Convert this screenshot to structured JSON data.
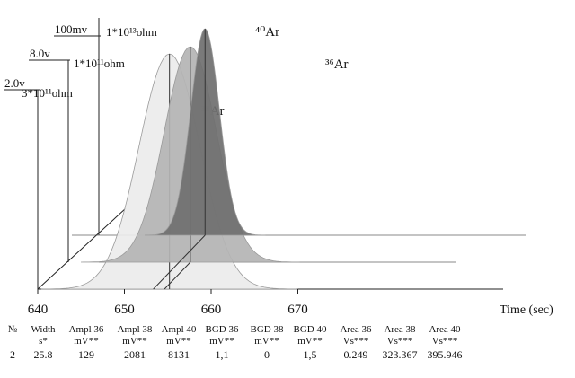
{
  "chart_data": {
    "type": "line",
    "title": "",
    "xlabel": "Time (sec)",
    "xlim": [
      640,
      676
    ],
    "x_ticks": [
      640,
      650,
      660,
      670
    ],
    "y_axes": [
      {
        "range": "2.0v",
        "resistor": "3*10¹¹ohm"
      },
      {
        "range": "8.0v",
        "resistor": "1*10¹¹ohm"
      },
      {
        "range": "100mv",
        "resistor": "1*10¹³ohm"
      }
    ],
    "series": [
      {
        "name": "³⁸Ar",
        "peak_x": 655.2,
        "width": 25.8,
        "color": "#ececec"
      },
      {
        "name": "⁴⁰Ar",
        "peak_x": 657.6,
        "width": 25.8,
        "color": "#b4b4b4"
      },
      {
        "name": "³⁶Ar",
        "peak_x": 659.3,
        "width": 25.8,
        "color": "#6f6f6f"
      }
    ]
  },
  "table": {
    "headers": [
      {
        "line1": "№",
        "line2": ""
      },
      {
        "line1": "Width",
        "line2": "s*"
      },
      {
        "line1": "Ampl 36",
        "line2": "mV**"
      },
      {
        "line1": "Ampl 38",
        "line2": "mV**"
      },
      {
        "line1": "Ampl 40",
        "line2": "mV**"
      },
      {
        "line1": "BGD 36",
        "line2": "mV**"
      },
      {
        "line1": "BGD 38",
        "line2": "mV**"
      },
      {
        "line1": "BGD 40",
        "line2": "mV**"
      },
      {
        "line1": "Area 36",
        "line2": "Vs***"
      },
      {
        "line1": "Area 38",
        "line2": "Vs***"
      },
      {
        "line1": "Area 40",
        "line2": "Vs***"
      }
    ],
    "rows": [
      [
        "2",
        "25.8",
        "129",
        "2081",
        "8131",
        "1,1",
        "0",
        "1,5",
        "0.249",
        "323.367",
        "395.946"
      ]
    ]
  }
}
